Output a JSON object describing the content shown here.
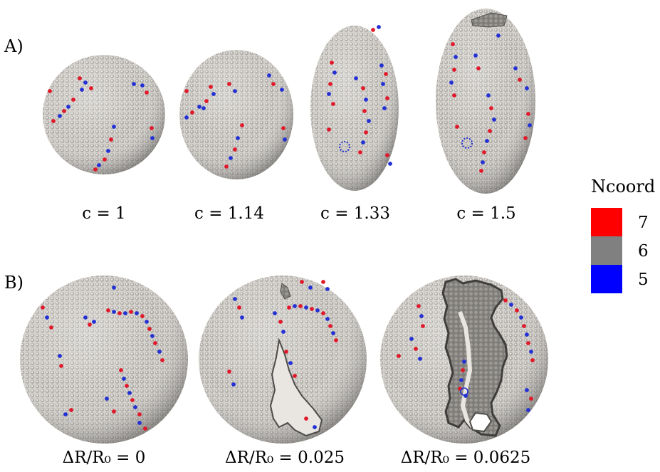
{
  "panels": {
    "a": {
      "label": "A)",
      "items": [
        {
          "caption": "c = 1",
          "aspect": 1
        },
        {
          "caption": "c = 1.14",
          "aspect": 1.14
        },
        {
          "caption": "c = 1.33",
          "aspect": 1.33
        },
        {
          "caption": "c = 1.5",
          "aspect": 1.5
        }
      ]
    },
    "b": {
      "label": "B)",
      "items": [
        {
          "caption": "ΔR/R₀ = 0",
          "delta": 0
        },
        {
          "caption": "ΔR/R₀ = 0.025",
          "delta": 0.025
        },
        {
          "caption": "ΔR/R₀ = 0.0625",
          "delta": 0.0625
        }
      ]
    }
  },
  "legend": {
    "title": "Ncoord",
    "entries": [
      {
        "label": "7",
        "color": "#ff0000"
      },
      {
        "label": "6",
        "color": "#808080"
      },
      {
        "label": "5",
        "color": "#0000ff"
      }
    ]
  },
  "colors": {
    "particle": "#c9c6c1",
    "particle_shadow": "#7d7b78",
    "crack": "#8f8c88",
    "crack_edge": "#4d4c4a",
    "defect_plus": "#e0192a",
    "defect_minus": "#2330d4"
  }
}
